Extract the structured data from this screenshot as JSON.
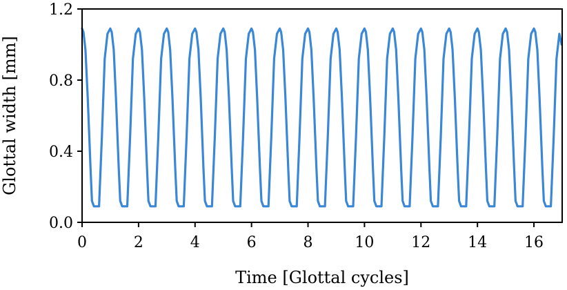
{
  "chart_data": {
    "type": "line",
    "xlabel": "Time [Glottal cycles]",
    "ylabel": "Glottal width [mm]",
    "xlim": [
      0,
      17
    ],
    "ylim": [
      0.0,
      1.2
    ],
    "x_ticks": [
      "0",
      "2",
      "4",
      "6",
      "8",
      "10",
      "12",
      "14",
      "16"
    ],
    "y_ticks": [
      "0.0",
      "0.4",
      "0.8",
      "1.2"
    ],
    "grid": false,
    "series": [
      {
        "color": "#3a87d6",
        "x": [
          0.0,
          0.05,
          0.12,
          0.2,
          0.3,
          0.35,
          0.42,
          0.6,
          0.7,
          0.8,
          0.9,
          1.0,
          1.05,
          1.12,
          1.2,
          1.3,
          1.35,
          1.42,
          1.6,
          1.7,
          1.8,
          1.9,
          2.0,
          2.05,
          2.12,
          2.2,
          2.3,
          2.35,
          2.42,
          2.6,
          2.7,
          2.8,
          2.9,
          3.0,
          3.05,
          3.12,
          3.2,
          3.3,
          3.35,
          3.42,
          3.6,
          3.7,
          3.8,
          3.9,
          4.0,
          4.05,
          4.12,
          4.2,
          4.3,
          4.35,
          4.42,
          4.6,
          4.7,
          4.8,
          4.9,
          5.0,
          5.05,
          5.12,
          5.2,
          5.3,
          5.35,
          5.42,
          5.6,
          5.7,
          5.8,
          5.9,
          6.0,
          6.05,
          6.12,
          6.2,
          6.3,
          6.35,
          6.42,
          6.6,
          6.7,
          6.8,
          6.9,
          7.0,
          7.05,
          7.12,
          7.2,
          7.3,
          7.35,
          7.42,
          7.6,
          7.7,
          7.8,
          7.9,
          8.0,
          8.05,
          8.12,
          8.2,
          8.3,
          8.35,
          8.42,
          8.6,
          8.7,
          8.8,
          8.9,
          9.0,
          9.05,
          9.12,
          9.2,
          9.3,
          9.35,
          9.42,
          9.6,
          9.7,
          9.8,
          9.9,
          10.0,
          10.05,
          10.12,
          10.2,
          10.3,
          10.35,
          10.42,
          10.6,
          10.7,
          10.8,
          10.9,
          11.0,
          11.05,
          11.12,
          11.2,
          11.3,
          11.35,
          11.42,
          11.6,
          11.7,
          11.8,
          11.9,
          12.0,
          12.05,
          12.12,
          12.2,
          12.3,
          12.35,
          12.42,
          12.6,
          12.7,
          12.8,
          12.9,
          13.0,
          13.05,
          13.12,
          13.2,
          13.3,
          13.35,
          13.42,
          13.6,
          13.7,
          13.8,
          13.9,
          14.0,
          14.05,
          14.12,
          14.2,
          14.3,
          14.35,
          14.42,
          14.6,
          14.7,
          14.8,
          14.9,
          15.0,
          15.05,
          15.12,
          15.2,
          15.3,
          15.35,
          15.42,
          15.6,
          15.7,
          15.8,
          15.9,
          16.0,
          16.05,
          16.12,
          16.2,
          16.3,
          16.35,
          16.42,
          16.6,
          16.7,
          16.8,
          16.9,
          16.98
        ],
        "y": [
          1.09,
          1.07,
          0.97,
          0.7,
          0.3,
          0.12,
          0.09,
          0.09,
          0.48,
          0.92,
          1.06,
          1.09,
          1.07,
          0.97,
          0.7,
          0.3,
          0.12,
          0.09,
          0.09,
          0.48,
          0.92,
          1.06,
          1.09,
          1.07,
          0.97,
          0.7,
          0.3,
          0.12,
          0.09,
          0.09,
          0.48,
          0.92,
          1.06,
          1.09,
          1.07,
          0.97,
          0.7,
          0.3,
          0.12,
          0.09,
          0.09,
          0.48,
          0.92,
          1.06,
          1.09,
          1.07,
          0.97,
          0.7,
          0.3,
          0.12,
          0.09,
          0.09,
          0.48,
          0.92,
          1.06,
          1.09,
          1.07,
          0.97,
          0.7,
          0.3,
          0.12,
          0.09,
          0.09,
          0.48,
          0.92,
          1.06,
          1.09,
          1.07,
          0.97,
          0.7,
          0.3,
          0.12,
          0.09,
          0.09,
          0.48,
          0.92,
          1.06,
          1.09,
          1.07,
          0.97,
          0.7,
          0.3,
          0.12,
          0.09,
          0.09,
          0.48,
          0.92,
          1.06,
          1.09,
          1.07,
          0.97,
          0.7,
          0.3,
          0.12,
          0.09,
          0.09,
          0.48,
          0.92,
          1.06,
          1.09,
          1.07,
          0.97,
          0.7,
          0.3,
          0.12,
          0.09,
          0.09,
          0.48,
          0.92,
          1.06,
          1.09,
          1.07,
          0.97,
          0.7,
          0.3,
          0.12,
          0.09,
          0.09,
          0.48,
          0.92,
          1.06,
          1.09,
          1.07,
          0.97,
          0.7,
          0.3,
          0.12,
          0.09,
          0.09,
          0.48,
          0.92,
          1.06,
          1.09,
          1.07,
          0.97,
          0.7,
          0.3,
          0.12,
          0.09,
          0.09,
          0.48,
          0.92,
          1.06,
          1.09,
          1.07,
          0.97,
          0.7,
          0.3,
          0.12,
          0.09,
          0.09,
          0.48,
          0.92,
          1.06,
          1.09,
          1.07,
          0.97,
          0.7,
          0.3,
          0.12,
          0.09,
          0.09,
          0.48,
          0.92,
          1.06,
          1.09,
          1.07,
          0.97,
          0.7,
          0.3,
          0.12,
          0.09,
          0.09,
          0.48,
          0.92,
          1.06,
          1.09,
          1.07,
          0.97,
          0.7,
          0.3,
          0.12,
          0.09,
          0.09,
          0.48,
          0.92,
          1.06,
          1.0
        ]
      }
    ]
  }
}
